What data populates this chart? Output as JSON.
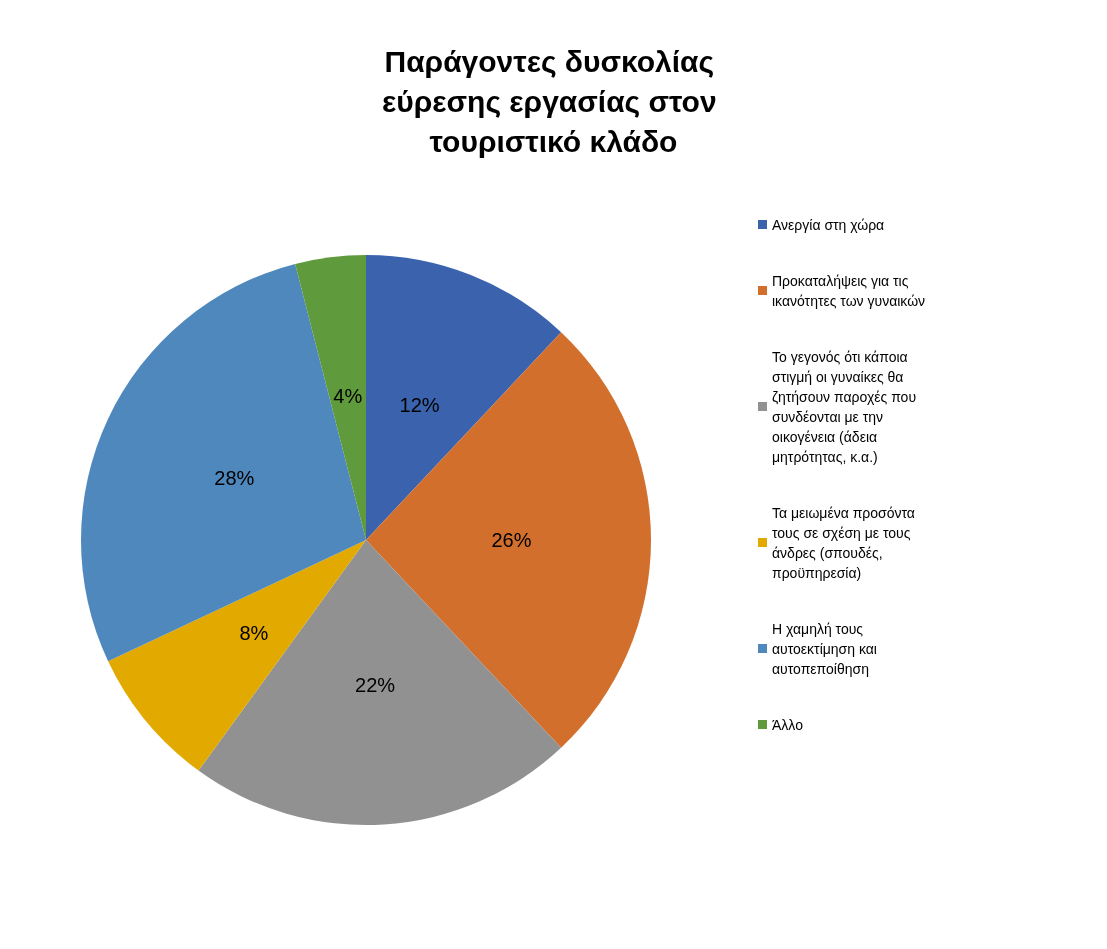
{
  "chart_data": {
    "type": "pie",
    "title": "Παράγοντες δυσκολίας εύρεσης εργασίας στον τουριστικό κλάδο",
    "categories": [
      "Ανεργία στη χώρα",
      "Προκαταλήψεις για τις ικανότητες των γυναικών",
      "Το γεγονός ότι κάποια στιγμή οι γυναίκες θα ζητήσουν παροχές που συνδέονται με την οικογένεια (άδεια μητρότητας, κ.α.)",
      "Τα μειωμένα προσόντα τους σε σχέση με τους άνδρες (σπουδές, προϋπηρεσία)",
      "Η χαμηλή τους αυτοεκτίμηση και αυτοπεποίθηση",
      "Άλλο"
    ],
    "values": [
      12,
      26,
      22,
      8,
      28,
      4
    ],
    "value_labels": [
      "12%",
      "26%",
      "22%",
      "8%",
      "28%",
      "4%"
    ],
    "colors": [
      "#3a62ad",
      "#d36f2c",
      "#919191",
      "#e2aa00",
      "#4f88bd",
      "#5f9a3c"
    ],
    "legend": "right"
  }
}
